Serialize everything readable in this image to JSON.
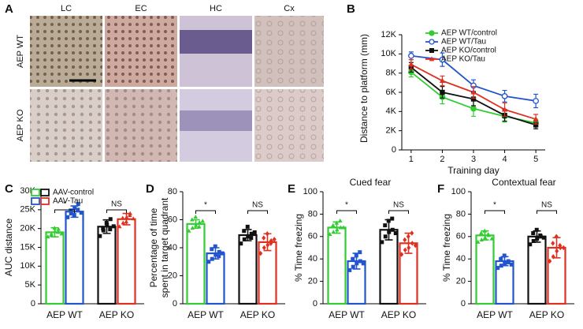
{
  "chart_data": [
    {
      "type": "image_grid",
      "panel_label": "A",
      "columns": [
        "LC",
        "EC",
        "HC",
        "Cx"
      ],
      "rows": [
        "AEP WT",
        "AEP KO"
      ]
    },
    {
      "type": "line",
      "panel_label": "B",
      "xlabel": "Training day",
      "ylabel": "Distance to platform (mm)",
      "x": [
        1,
        2,
        3,
        4,
        5
      ],
      "xlim": [
        0.7,
        5.3
      ],
      "xticks": [
        1,
        2,
        3,
        4,
        5
      ],
      "ylim": [
        0,
        12000
      ],
      "yticks": [
        0,
        {
          "value": 2000,
          "label": "2K"
        },
        {
          "value": 4000,
          "label": "4K"
        },
        {
          "value": 6000,
          "label": "6K"
        },
        {
          "value": 8000,
          "label": "8K"
        },
        {
          "value": 10000,
          "label": "10K"
        },
        {
          "value": 12000,
          "label": "12K"
        }
      ],
      "series": [
        {
          "name": "AEP WT/control",
          "color": "#33cc33",
          "marker": "circle",
          "values": [
            8100,
            5500,
            4300,
            3500,
            2800
          ],
          "errors": [
            500,
            700,
            800,
            600,
            400
          ]
        },
        {
          "name": "AEP WT/Tau",
          "color": "#2255cc",
          "marker": "open-circle",
          "values": [
            9800,
            9400,
            6700,
            5600,
            5100
          ],
          "errors": [
            400,
            700,
            600,
            600,
            700
          ]
        },
        {
          "name": "AEP KO/control",
          "color": "#111111",
          "marker": "square",
          "values": [
            8600,
            6000,
            5300,
            3600,
            2600
          ],
          "errors": [
            500,
            600,
            700,
            600,
            400
          ]
        },
        {
          "name": "AEP KO/Tau",
          "color": "#e03020",
          "marker": "triangle",
          "values": [
            8900,
            7200,
            6000,
            4200,
            3200
          ],
          "errors": [
            500,
            500,
            600,
            700,
            500
          ]
        }
      ]
    },
    {
      "type": "bar",
      "panel_label": "C",
      "ylabel": [
        "AUC distance"
      ],
      "legend": true,
      "categories": [
        "AEP WT",
        "AEP KO"
      ],
      "ylim": [
        0,
        30000
      ],
      "yticks": [
        0,
        {
          "value": 5000,
          "label": "5K"
        },
        {
          "value": 10000,
          "label": "10K"
        },
        {
          "value": 15000,
          "label": "15K"
        },
        {
          "value": 20000,
          "label": "20K"
        },
        {
          "value": 25000,
          "label": "25K"
        },
        {
          "value": 30000,
          "label": "30K"
        }
      ],
      "annotations": [
        "*",
        "NS"
      ],
      "series": [
        {
          "name": "AAV-control",
          "colors": [
            "#33cc33",
            "#111111"
          ],
          "markers": [
            "triangle",
            "square"
          ],
          "values": [
            19000,
            20500
          ],
          "errors": [
            1200,
            1800
          ],
          "points": [
            [
              17800,
              18500,
              19200,
              19800,
              18200,
              20100,
              19000,
              18600
            ],
            [
              18000,
              19500,
              21000,
              22500,
              20000,
              21500,
              19800,
              20600
            ]
          ]
        },
        {
          "name": "AAV-Tau",
          "colors": [
            "#2255cc",
            "#e03020"
          ],
          "markers": [
            "square",
            "triangle"
          ],
          "values": [
            24500,
            22500
          ],
          "errors": [
            1500,
            1500
          ],
          "points": [
            [
              23000,
              24000,
              25500,
              26500,
              24800,
              23600,
              25000,
              24200
            ],
            [
              20500,
              21500,
              23000,
              24000,
              22800,
              21800,
              23500,
              22600
            ]
          ]
        }
      ]
    },
    {
      "type": "bar",
      "panel_label": "D",
      "ylabel": [
        "Percentage of time",
        "spent in target quadrant"
      ],
      "categories": [
        "AEP WT",
        "AEP KO"
      ],
      "ylim": [
        0,
        80
      ],
      "yticks": [
        0,
        20,
        40,
        60,
        80
      ],
      "annotations": [
        "*",
        "NS"
      ],
      "series": [
        {
          "colors": [
            "#33cc33",
            "#111111"
          ],
          "markers": [
            "triangle",
            "square"
          ],
          "values": [
            57,
            49
          ],
          "errors": [
            3,
            4
          ],
          "points": [
            [
              52,
              54,
              56,
              58,
              60,
              62,
              55,
              59
            ],
            [
              43,
              46,
              48,
              50,
              52,
              55,
              47,
              51
            ]
          ]
        },
        {
          "colors": [
            "#2255cc",
            "#e03020"
          ],
          "markers": [
            "square",
            "diamond"
          ],
          "values": [
            36,
            44
          ],
          "errors": [
            4,
            6
          ],
          "points": [
            [
              30,
              32,
              35,
              37,
              39,
              41,
              34,
              36
            ],
            [
              36,
              40,
              42,
              45,
              47,
              50,
              43,
              46
            ]
          ]
        }
      ]
    },
    {
      "type": "bar",
      "panel_label": "E",
      "title": "Cued fear",
      "ylabel": [
        "% Time freezing"
      ],
      "categories": [
        "AEP WT",
        "AEP KO"
      ],
      "ylim": [
        0,
        100
      ],
      "yticks": [
        0,
        20,
        40,
        60,
        80,
        100
      ],
      "annotations": [
        "*",
        "NS"
      ],
      "series": [
        {
          "colors": [
            "#33cc33",
            "#111111"
          ],
          "markers": [
            "triangle",
            "square"
          ],
          "values": [
            68,
            66
          ],
          "errors": [
            5,
            9
          ],
          "points": [
            [
              62,
              64,
              66,
              68,
              70,
              72,
              74,
              68
            ],
            [
              55,
              60,
              64,
              66,
              70,
              74,
              76,
              63
            ]
          ]
        },
        {
          "colors": [
            "#2255cc",
            "#e03020"
          ],
          "markers": [
            "square",
            "diamond"
          ],
          "values": [
            38,
            54
          ],
          "errors": [
            7,
            9
          ],
          "points": [
            [
              30,
              33,
              36,
              38,
              40,
              43,
              46,
              36
            ],
            [
              44,
              48,
              50,
              54,
              57,
              60,
              63,
              52
            ]
          ]
        }
      ]
    },
    {
      "type": "bar",
      "panel_label": "F",
      "title": "Contextual fear",
      "ylabel": [
        "% Time freezing"
      ],
      "categories": [
        "AEP WT",
        "AEP KO"
      ],
      "ylim": [
        0,
        100
      ],
      "yticks": [
        0,
        20,
        40,
        60,
        80,
        100
      ],
      "annotations": [
        "*",
        "NS"
      ],
      "series": [
        {
          "colors": [
            "#33cc33",
            "#111111"
          ],
          "markers": [
            "triangle",
            "square"
          ],
          "values": [
            61,
            60
          ],
          "errors": [
            4,
            5
          ],
          "points": [
            [
              55,
              57,
              59,
              61,
              63,
              65,
              62,
              58
            ],
            [
              53,
              56,
              58,
              60,
              63,
              66,
              61,
              59
            ]
          ]
        },
        {
          "colors": [
            "#2255cc",
            "#e03020"
          ],
          "markers": [
            "square",
            "diamond"
          ],
          "values": [
            38,
            50
          ],
          "errors": [
            4,
            9
          ],
          "points": [
            [
              32,
              34,
              36,
              38,
              40,
              43,
              37,
              35
            ],
            [
              38,
              42,
              47,
              50,
              54,
              60,
              52,
              50
            ]
          ]
        }
      ]
    }
  ]
}
